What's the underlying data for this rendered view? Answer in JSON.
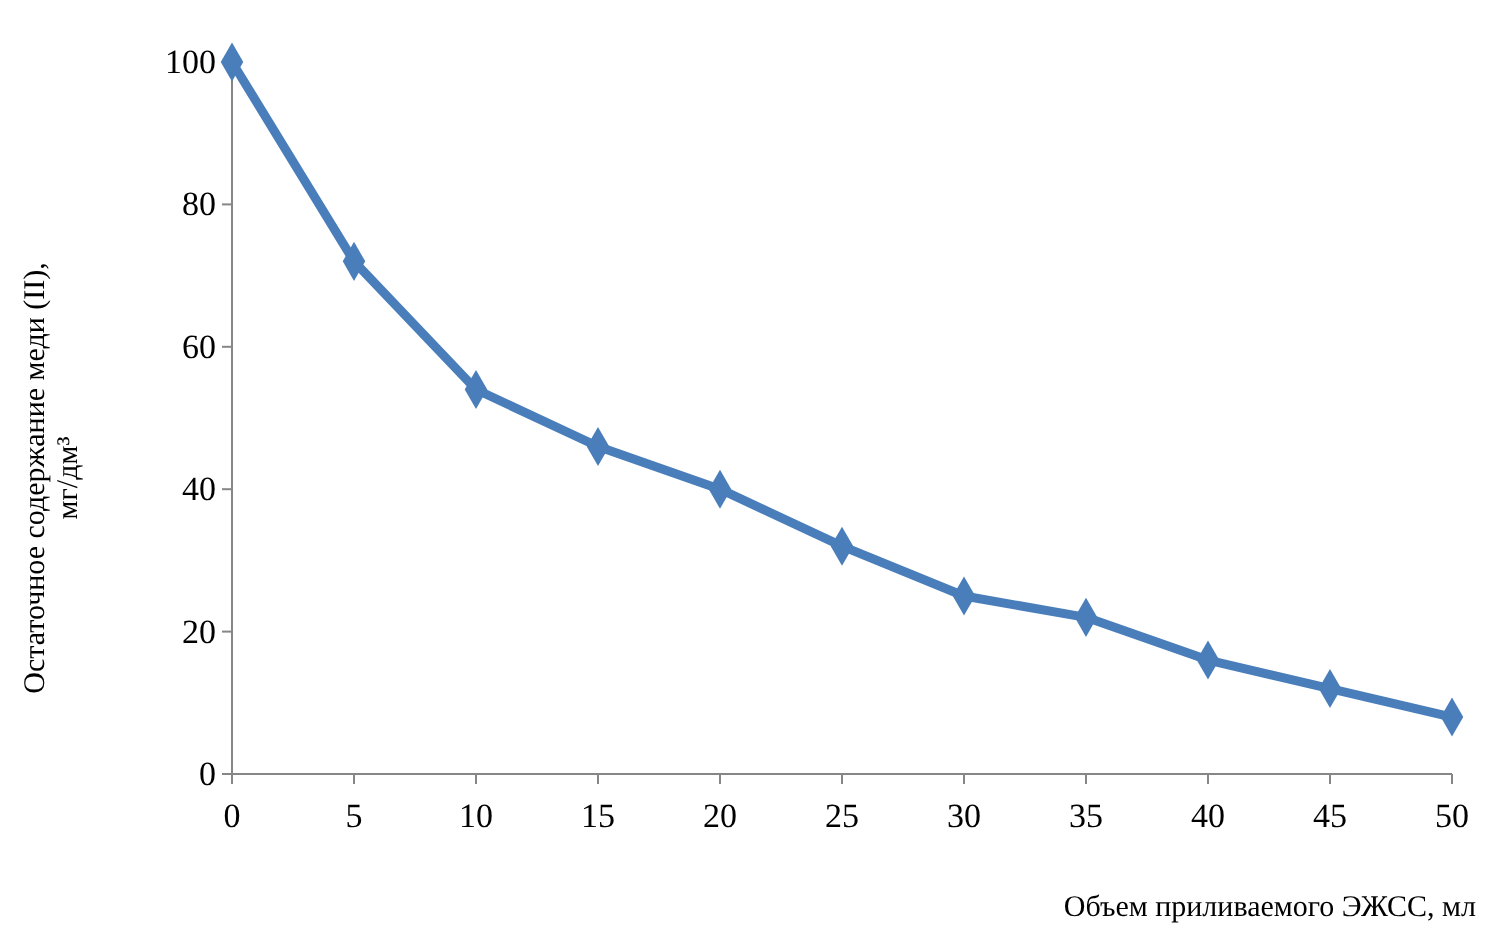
{
  "chart_data": {
    "type": "line",
    "xlabel": "Объем приливаемого ЭЖСС, мл",
    "ylabel": "Остаточное содержание меди (II), мг/дм³",
    "x": [
      0,
      5,
      10,
      15,
      20,
      25,
      30,
      35,
      40,
      45,
      50
    ],
    "series": [
      {
        "color": "#4a7ebb",
        "values": [
          100,
          72,
          54,
          46,
          40,
          32,
          25,
          22,
          16,
          12,
          8
        ]
      }
    ],
    "xlim": [
      0,
      50
    ],
    "xticks": [
      0,
      5,
      10,
      15,
      20,
      25,
      30,
      35,
      40,
      45,
      50
    ],
    "ylim": [
      0,
      100
    ],
    "yticks": [
      0,
      20,
      40,
      60,
      80,
      100
    ],
    "grid": false,
    "marker": "diamond",
    "line_style": "solid"
  }
}
